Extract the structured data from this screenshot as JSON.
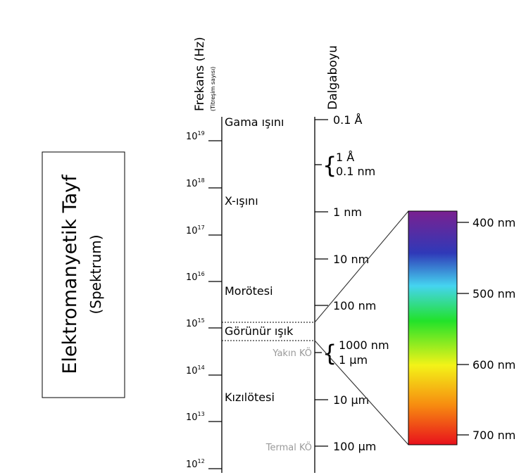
{
  "title_box": {
    "title": "Elektromanyetik Tayf",
    "subtitle": "(Spektrum)"
  },
  "axes": {
    "frequency_title": "Frekans (Hz)",
    "frequency_subtitle": "(Titreşim sayısı)",
    "wavelength_title": "Dalgaboyu"
  },
  "frequency_ticks": [
    {
      "base": "10",
      "exp": "19"
    },
    {
      "base": "10",
      "exp": "18"
    },
    {
      "base": "10",
      "exp": "17"
    },
    {
      "base": "10",
      "exp": "16"
    },
    {
      "base": "10",
      "exp": "15"
    },
    {
      "base": "10",
      "exp": "14"
    },
    {
      "base": "10",
      "exp": "13"
    },
    {
      "base": "10",
      "exp": "12"
    }
  ],
  "regions": {
    "gamma": "Gama ışını",
    "xray": "X-ışını",
    "uv": "Morötesi",
    "visible": "Görünür ışık",
    "infrared": "Kızılötesi"
  },
  "side_labels": {
    "near_ir": "Yakın KÖ",
    "thermal_ir": "Termal KÖ"
  },
  "wavelength_ticks": {
    "w1": "0.1 Å",
    "w2a": "1 Å",
    "w2b": "0.1 nm",
    "w3": "1 nm",
    "w4": "10 nm",
    "w5": "100 nm",
    "w6a": "1000 nm",
    "w6b": "1 μm",
    "w7": "10 μm",
    "w8": "100 μm"
  },
  "spectrum_ticks": [
    "400 nm",
    "500 nm",
    "600 nm",
    "700 nm"
  ],
  "colors": {
    "violet": "#7a2190",
    "blue": "#2f39b8",
    "cyan": "#45d4f0",
    "green": "#22e22a",
    "yellow": "#f3f318",
    "orange": "#f78c10",
    "red": "#e8111c"
  }
}
